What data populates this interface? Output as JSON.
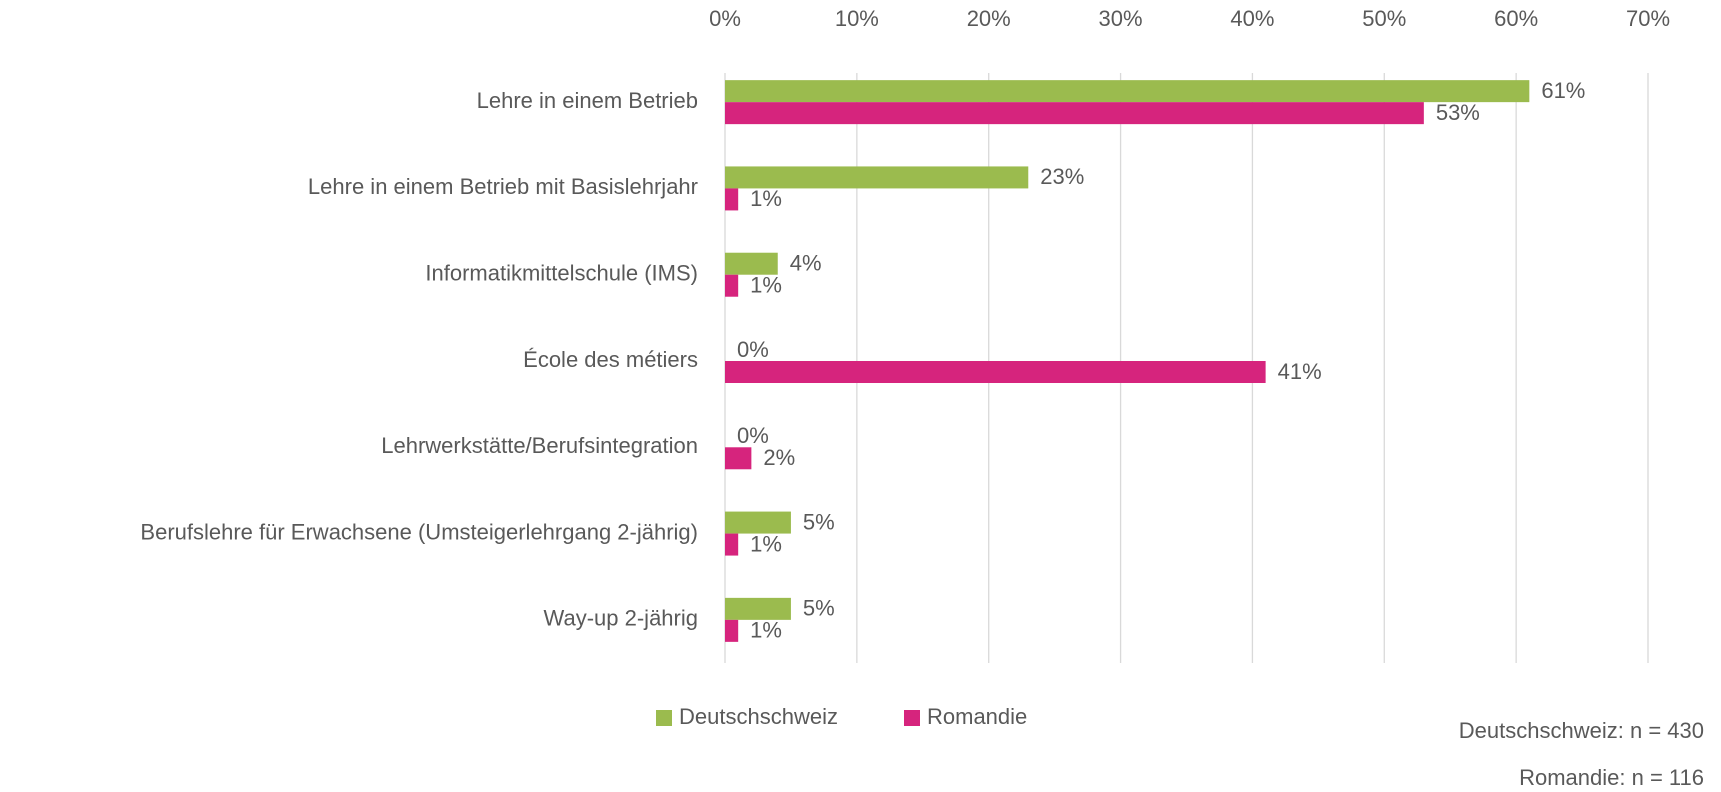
{
  "chart_data": {
    "type": "hbar",
    "categories": [
      "Lehre in einem Betrieb",
      "Lehre in einem Betrieb mit Basislehrjahr",
      "Informatikmittelschule (IMS)",
      "École des métiers",
      "Lehrwerkstätte/Berufsintegration",
      "Berufslehre für Erwachsene (Umsteigerlehrgang 2-jährig)",
      "Way-up 2-jährig"
    ],
    "series": [
      {
        "name": "Deutschschweiz",
        "color": "#9bbb4e",
        "values": [
          61,
          23,
          4,
          0,
          0,
          5,
          5
        ],
        "value_labels": [
          "61%",
          "23%",
          "4%",
          "0%",
          "0%",
          "5%",
          "5%"
        ]
      },
      {
        "name": "Romandie",
        "color": "#d6247d",
        "values": [
          53,
          1,
          1,
          41,
          2,
          1,
          1
        ],
        "value_labels": [
          "53%",
          "1%",
          "1%",
          "41%",
          "2%",
          "1%",
          "1%"
        ]
      }
    ],
    "xlim": [
      0,
      70
    ],
    "xticks": [
      {
        "value": 0,
        "label": "0%"
      },
      {
        "value": 10,
        "label": "10%"
      },
      {
        "value": 20,
        "label": "20%"
      },
      {
        "value": 30,
        "label": "30%"
      },
      {
        "value": 40,
        "label": "40%"
      },
      {
        "value": 50,
        "label": "50%"
      },
      {
        "value": 60,
        "label": "60%"
      },
      {
        "value": 70,
        "label": "70%"
      }
    ],
    "grid": true,
    "legend": "bottom",
    "annotations": [
      "Deutschschweiz: n = 430",
      "Romandie: n = 116"
    ]
  }
}
